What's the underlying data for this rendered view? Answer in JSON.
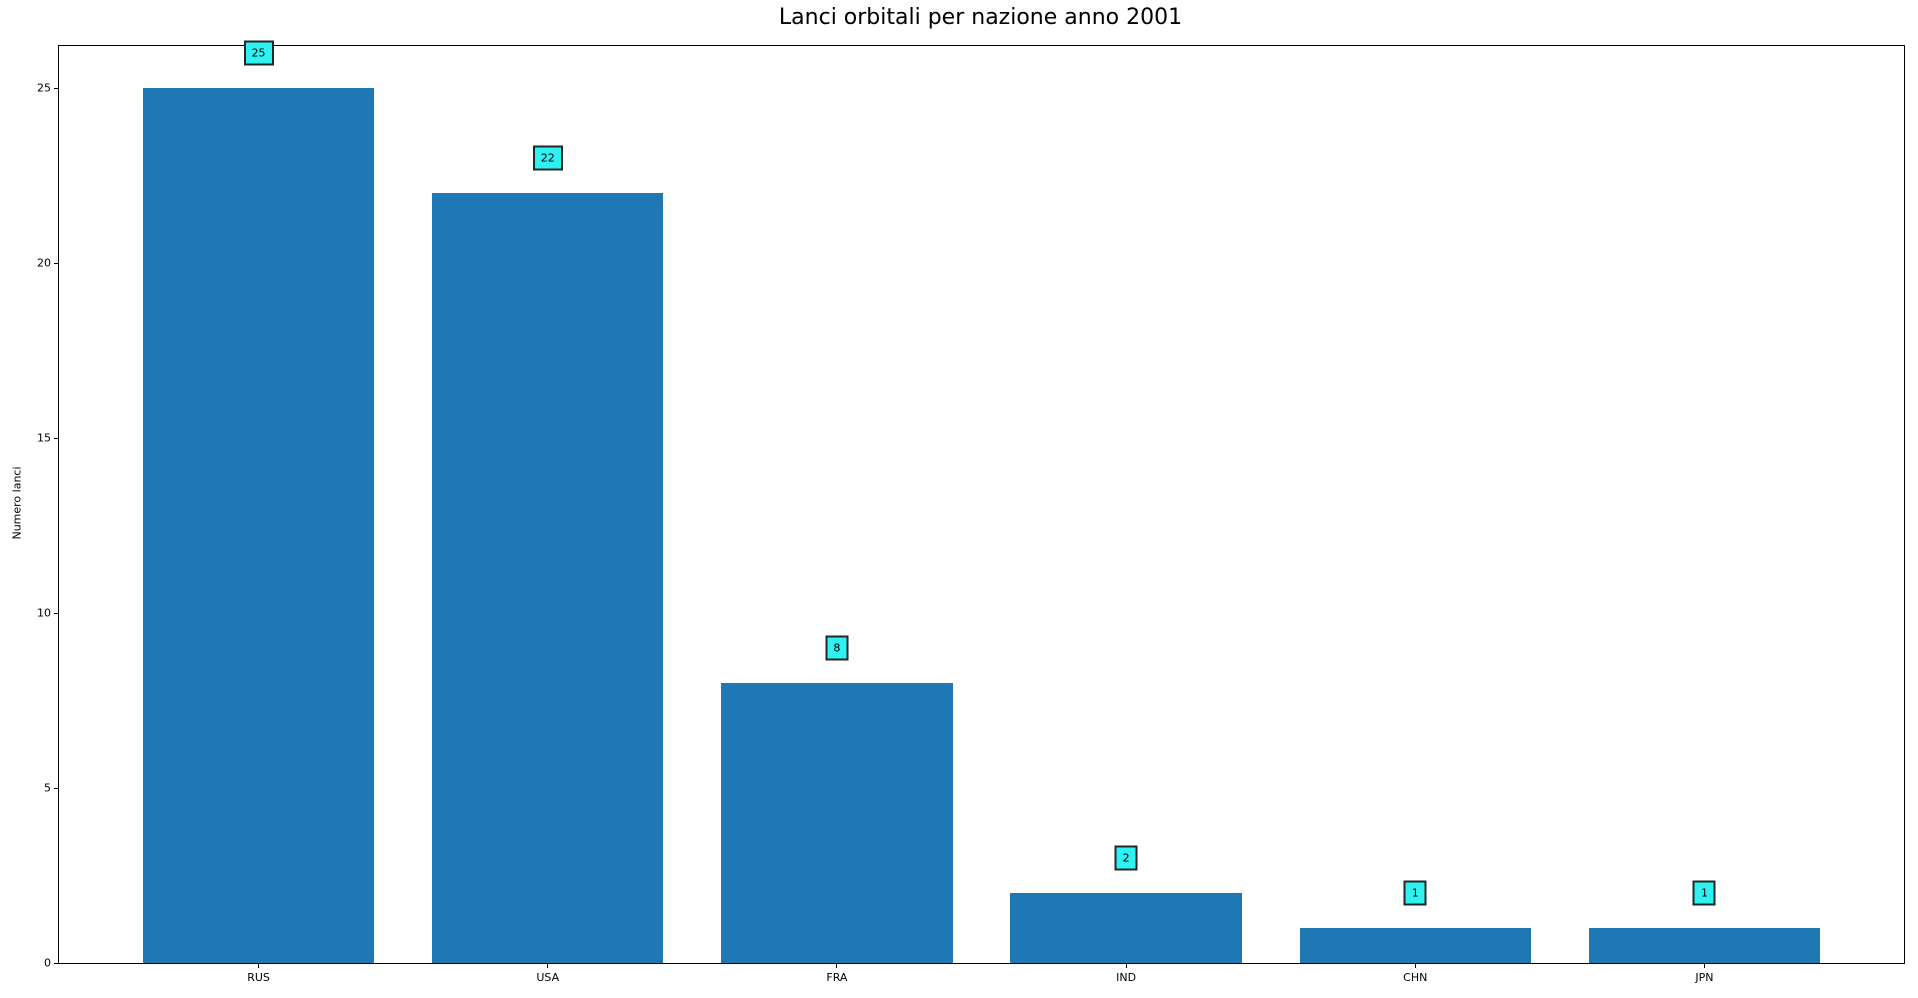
{
  "chart_data": {
    "type": "bar",
    "title": "Lanci orbitali per nazione anno 2001",
    "categories": [
      "RUS",
      "USA",
      "FRA",
      "IND",
      "CHN",
      "JPN"
    ],
    "values": [
      25,
      22,
      8,
      2,
      1,
      1
    ],
    "xlabel": "",
    "ylabel": "Numero lanci",
    "yticks": [
      0,
      5,
      10,
      15,
      20,
      25
    ],
    "ylim": [
      0,
      26.2
    ],
    "xlim": [
      -0.69,
      5.69
    ],
    "bar_width": 0.8,
    "grid": false,
    "legend": null,
    "colors": {
      "bar_fill": "#1f77b4",
      "annotation_fill": "#2ef2f2",
      "annotation_border": "#262626",
      "spine": "#000000",
      "text": "#000000"
    },
    "annotations": {
      "labels": [
        "25",
        "22",
        "8",
        "2",
        "1",
        "1"
      ],
      "offset_units": 1
    }
  }
}
